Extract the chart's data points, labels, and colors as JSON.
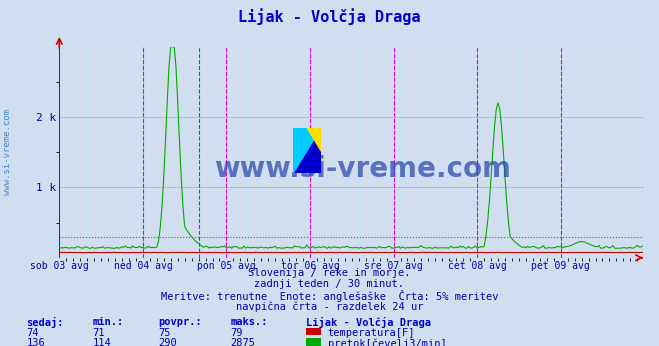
{
  "title": "Lijak - Volčja Draga",
  "title_color": "#0000cc",
  "bg_color": "#d0dff0",
  "plot_bg_color": "#d0dff0",
  "grid_color_major": "#ff9999",
  "grid_color_minor": "#ffcccc",
  "vline_color_dashed": "#dd00dd",
  "vline_color_solid": "#0000dd",
  "xlabel_color": "#0000aa",
  "n_points": 336,
  "day_labels": [
    "sob 03 avg",
    "ned 04 avg",
    "pon 05 avg",
    "tor 06 avg",
    "sre 07 avg",
    "čet 08 avg",
    "pet 09 avg"
  ],
  "day_ticks": [
    0,
    48,
    96,
    144,
    192,
    240,
    288
  ],
  "vline_ticks": [
    48,
    96,
    144,
    192,
    240,
    288,
    335
  ],
  "ylim": [
    0,
    3000
  ],
  "ytick_labels": [
    "",
    "1 k",
    "2 k"
  ],
  "temp_color": "#cc0000",
  "flow_color": "#00aa00",
  "temp_min": 71,
  "temp_max": 79,
  "temp_avg": 75,
  "temp_cur": 74,
  "flow_min": 114,
  "flow_max": 2875,
  "flow_avg": 290,
  "flow_cur": 136,
  "watermark": "www.si-vreme.com",
  "watermark_color": "#2244aa",
  "subtitle1": "Slovenija / reke in morje.",
  "subtitle2": "zadnji teden / 30 minut.",
  "subtitle3": "Meritve: trenutne  Enote: anglešaške  Črta: 5% meritev",
  "subtitle4": "navpična črta - razdelek 24 ur",
  "table_headers": [
    "sedaj:",
    "min.:",
    "povpr.:",
    "maks.:",
    "Lijak - Volčja Draga"
  ],
  "legend_label1": "temperatura[F]",
  "legend_label2": "pretok[čevelj3/min]",
  "text_color": "#0000aa",
  "table_color": "#0000cc",
  "sidebar_text": "www.si-vreme.com",
  "sidebar_color": "#4488cc"
}
